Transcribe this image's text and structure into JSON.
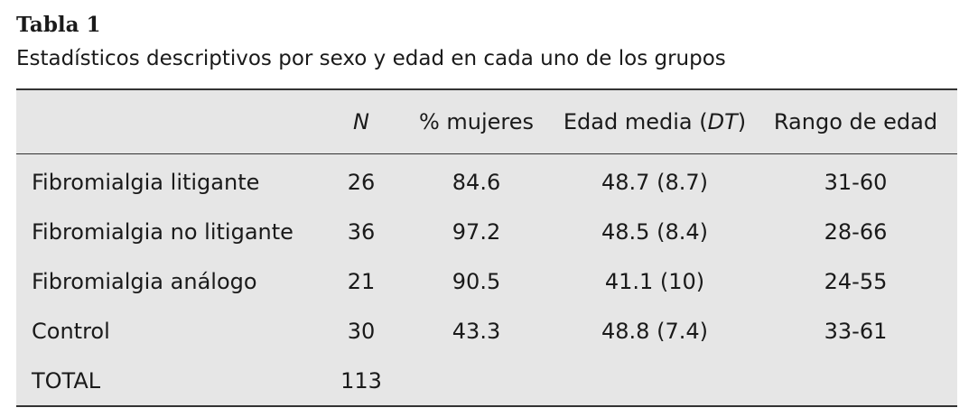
{
  "title": "Tabla 1",
  "caption": "Estadísticos descriptivos por sexo y edad en cada uno de los grupos",
  "table": {
    "header": [
      [
        "N"
      ],
      [
        "% mujeres"
      ],
      [
        "Edad media (",
        "DT",
        ")"
      ],
      [
        "Rango de edad"
      ]
    ],
    "rows": [
      [
        "Fibromialgia litigante",
        "26",
        "84.6",
        "48.7 (8.7)",
        "31-60"
      ],
      [
        "Fibromialgia no litigante",
        "36",
        "97.2",
        "48.5 (8.4)",
        "28-66"
      ],
      [
        "Fibromialgia análogo",
        "21",
        "90.5",
        "41.1 (10)",
        "24-55"
      ],
      [
        "Control",
        "30",
        "43.3",
        "48.8 (7.4)",
        "33-61"
      ],
      [
        "TOTAL",
        "113"
      ]
    ]
  }
}
